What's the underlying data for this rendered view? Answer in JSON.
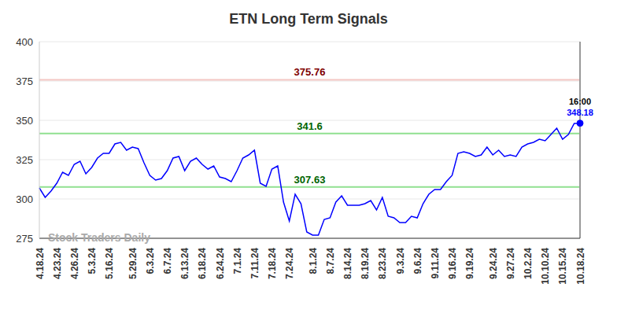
{
  "chart_data": {
    "type": "line",
    "title": "ETN Long Term Signals",
    "watermark": "Stock Traders Daily",
    "last_label": "16:00",
    "categories": [
      "4.18.24",
      null,
      null,
      "4.23.24",
      null,
      null,
      "4.26.24",
      null,
      null,
      "5.3.24",
      null,
      null,
      "5.16.24",
      null,
      null,
      null,
      "5.29.24",
      null,
      null,
      "6.3.24",
      null,
      null,
      "6.7.24",
      null,
      null,
      "6.13.24",
      null,
      null,
      "6.18.24",
      null,
      null,
      "6.24.24",
      null,
      null,
      "7.1.24",
      null,
      null,
      "7.11.24",
      null,
      null,
      "7.18.24",
      null,
      null,
      "7.24.24",
      null,
      null,
      null,
      "8.1.24",
      null,
      null,
      "8.7.24",
      null,
      null,
      "8.14.24",
      null,
      null,
      "8.19.24",
      null,
      null,
      "8.23.24",
      null,
      null,
      "9.3.24",
      null,
      null,
      "9.6.24",
      null,
      null,
      "9.11.24",
      null,
      null,
      "9.16.24",
      null,
      null,
      "9.19.24",
      null,
      null,
      null,
      "9.24.24",
      null,
      null,
      "9.27.24",
      null,
      null,
      "10.2.24",
      null,
      null,
      "10.10.24",
      null,
      null,
      "10.15.24",
      null,
      null,
      "10.18.24"
    ],
    "values": [
      307,
      301,
      305,
      310,
      317,
      315,
      322,
      324,
      316,
      320,
      326,
      329,
      329,
      335,
      336,
      331,
      333,
      332,
      323,
      315,
      312,
      313,
      318,
      326,
      327,
      318,
      324,
      326,
      322,
      319,
      321,
      314,
      313,
      311,
      318,
      326,
      328,
      331,
      310,
      308,
      319,
      321,
      298,
      286,
      303,
      297,
      279,
      277,
      277,
      287,
      288,
      298,
      302,
      296,
      296,
      296,
      297,
      299,
      293,
      301,
      289,
      288,
      285,
      285,
      289,
      288,
      297,
      303,
      306,
      306,
      311,
      315,
      329,
      330,
      329,
      327,
      328,
      333,
      328,
      331,
      327,
      328,
      327,
      333,
      335,
      336,
      338,
      337,
      341,
      345,
      338,
      341,
      348,
      348.18
    ],
    "color": "#0000ff",
    "ylim": [
      275,
      400
    ],
    "yticks": [
      275,
      300,
      325,
      350,
      375,
      400
    ],
    "grid": true,
    "reference_lines": [
      {
        "value": 375.76,
        "color": "#f4c7c3",
        "label_color": "#800000"
      },
      {
        "value": 341.6,
        "color": "#90e090",
        "label_color": "#006400"
      },
      {
        "value": 307.63,
        "color": "#90e090",
        "label_color": "#006400"
      }
    ]
  }
}
